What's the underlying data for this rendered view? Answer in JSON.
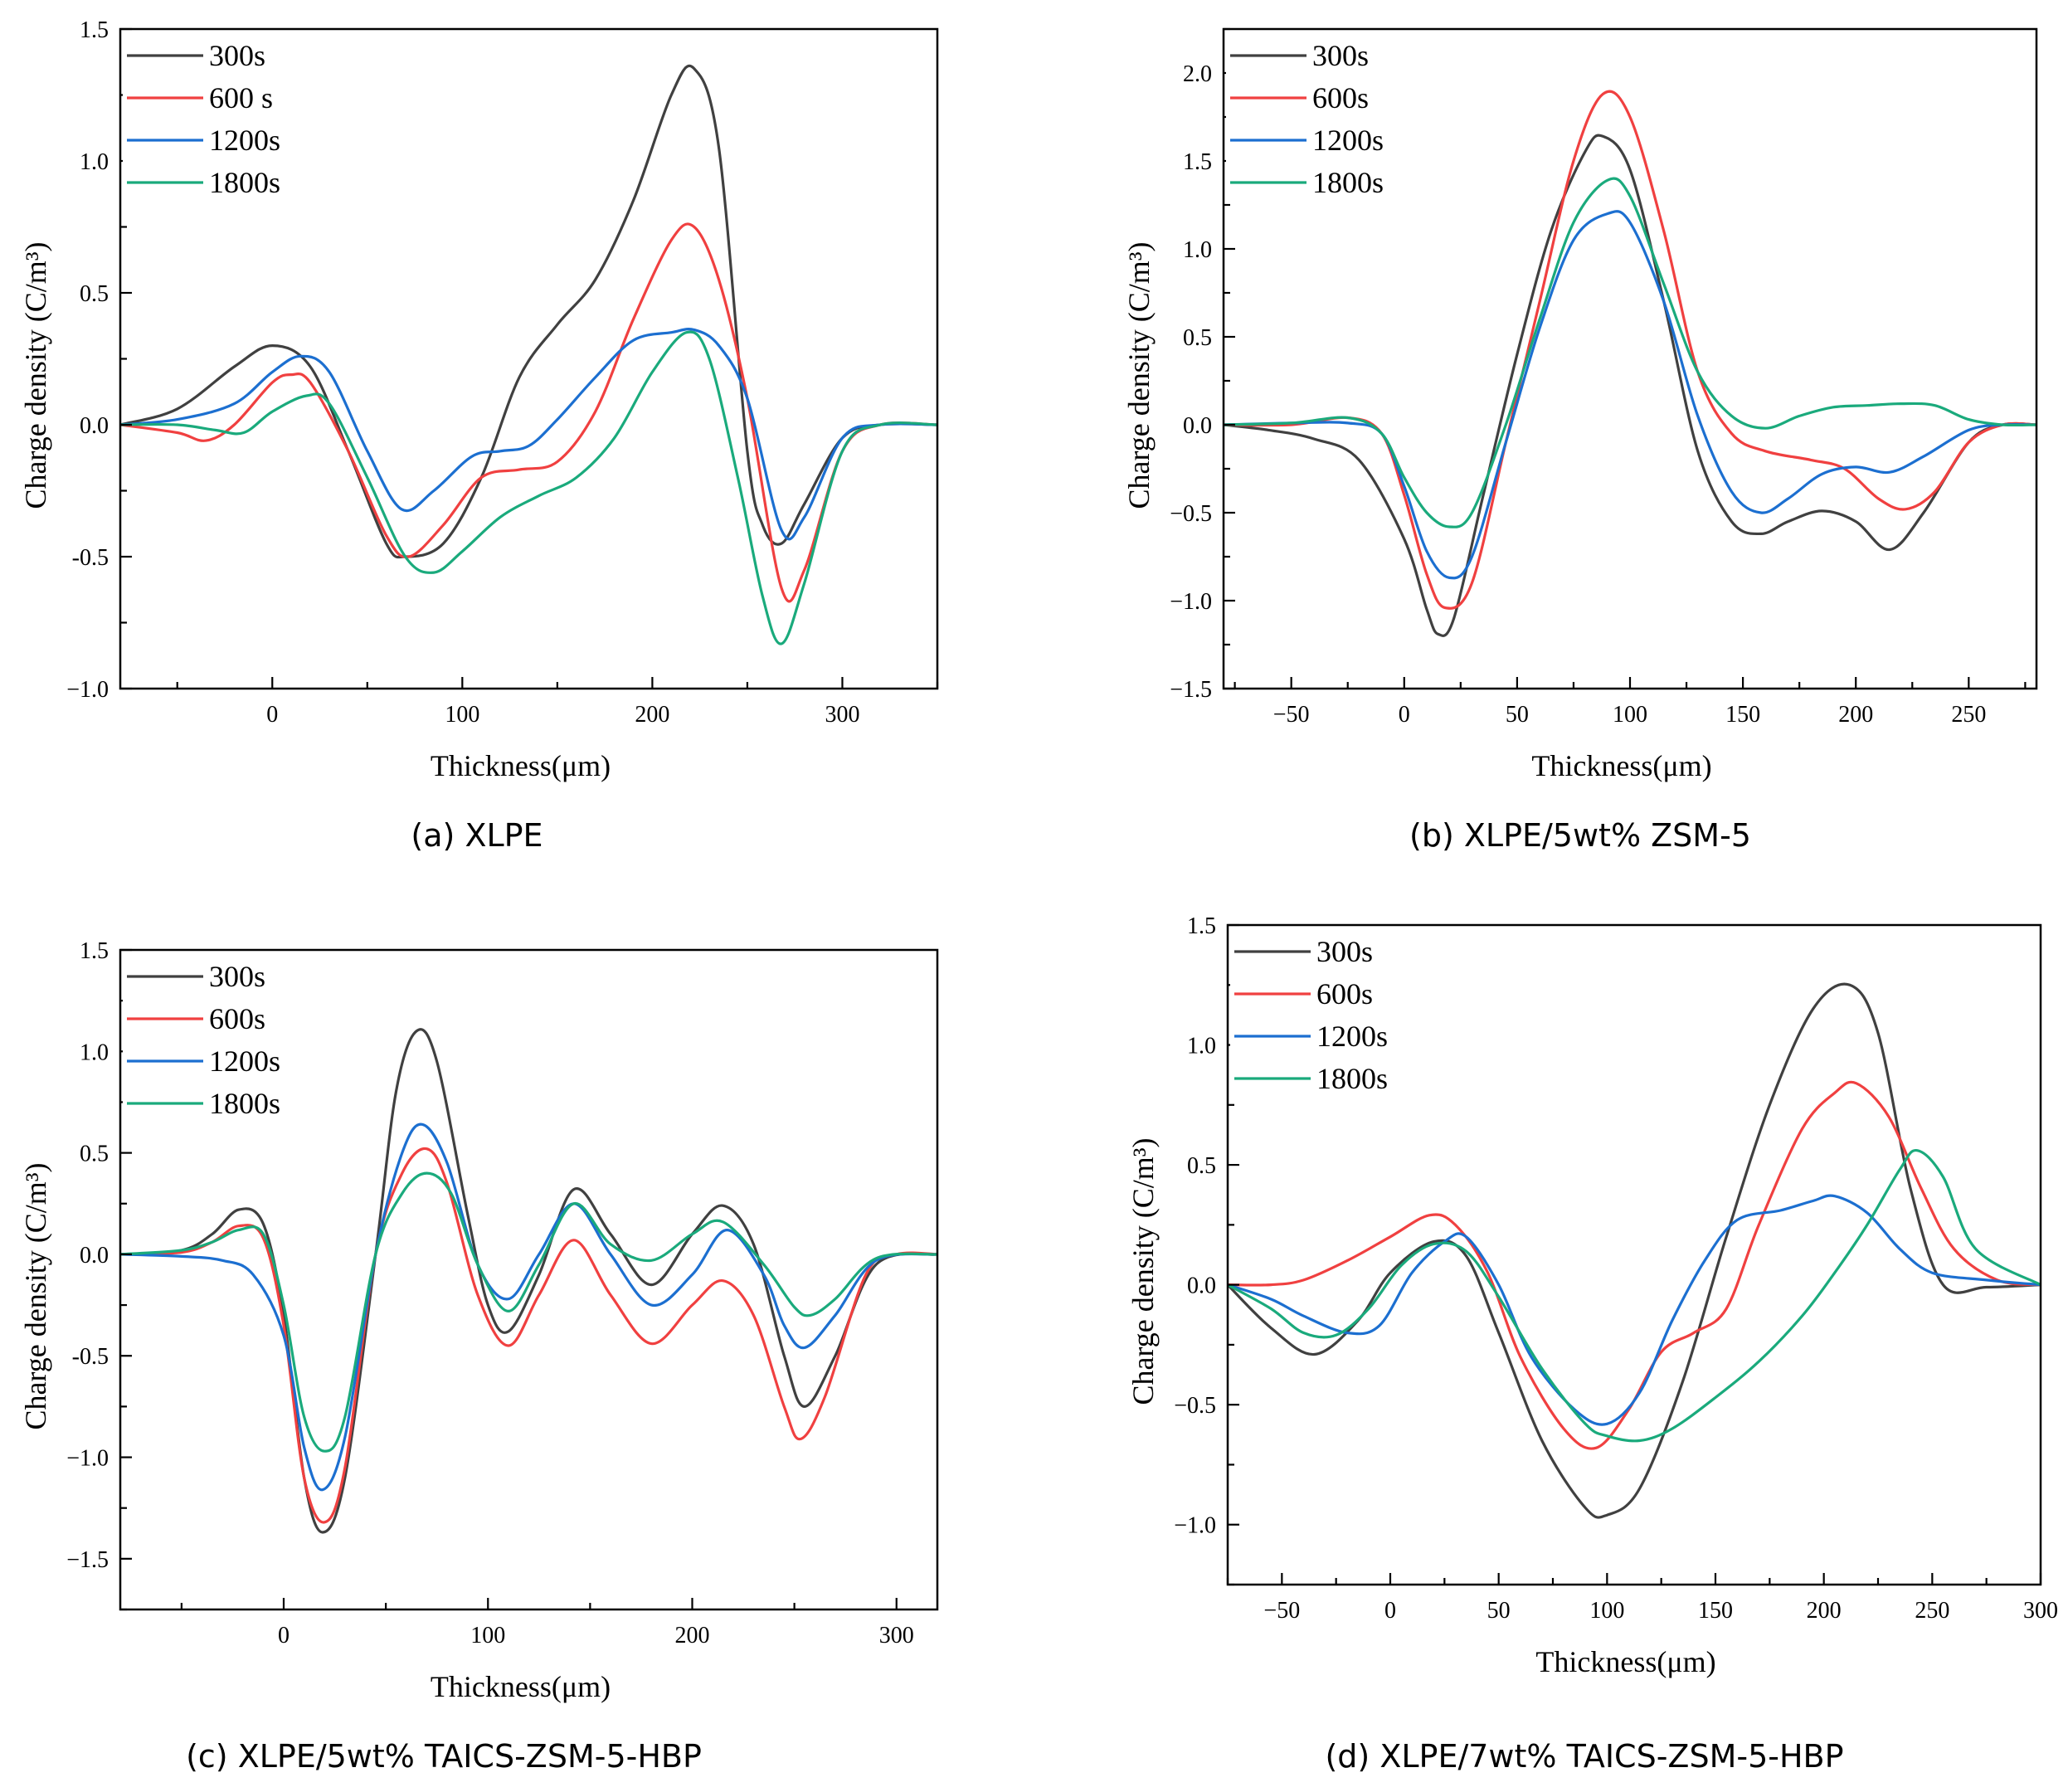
{
  "figure": {
    "series_colors": {
      "300s": "#404040",
      "600s": "#f04040",
      "1200s": "#1c6fd0",
      "1800s": "#1aaa7c"
    }
  },
  "chart_data": [
    {
      "type": "line",
      "caption": "(a) XLPE",
      "xlabel": "Thickness(μm)",
      "ylabel": "Charge density (C/m³)",
      "xlim": [
        -80,
        350
      ],
      "ylim": [
        -1.0,
        1.5
      ],
      "xticks": [
        0,
        100,
        200,
        300
      ],
      "xtick_labels": [
        "0",
        "100",
        "200",
        "300"
      ],
      "yticks": [
        -1.0,
        -0.5,
        0.0,
        0.5,
        1.0,
        1.5
      ],
      "ytick_labels": [
        "−1.0",
        "-0.5",
        "0.0",
        "0.5",
        "1.0",
        "1.5"
      ],
      "legend": [
        "300s",
        "600 s",
        "1200s",
        "1800s"
      ],
      "series": [
        {
          "name": "300s",
          "x": [
            -80,
            -50,
            -20,
            0,
            20,
            40,
            60,
            70,
            90,
            110,
            130,
            150,
            170,
            190,
            210,
            222,
            235,
            250,
            258,
            268,
            280,
            300,
            320,
            350
          ],
          "y": [
            0,
            0.06,
            0.22,
            0.3,
            0.22,
            -0.1,
            -0.45,
            -0.5,
            -0.45,
            -0.2,
            0.18,
            0.38,
            0.55,
            0.85,
            1.25,
            1.35,
            1.05,
            -0.1,
            -0.38,
            -0.45,
            -0.3,
            -0.05,
            0,
            0
          ]
        },
        {
          "name": "600 s",
          "x": [
            -80,
            -50,
            -35,
            -20,
            0,
            10,
            20,
            40,
            60,
            72,
            90,
            110,
            130,
            150,
            170,
            190,
            210,
            222,
            235,
            250,
            268,
            280,
            300,
            320,
            350
          ],
          "y": [
            0,
            -0.03,
            -0.06,
            0.0,
            0.16,
            0.19,
            0.16,
            -0.1,
            -0.42,
            -0.5,
            -0.38,
            -0.2,
            -0.17,
            -0.14,
            0.05,
            0.4,
            0.7,
            0.75,
            0.55,
            0.1,
            -0.62,
            -0.55,
            -0.1,
            0,
            0
          ]
        },
        {
          "name": "1200s",
          "x": [
            -80,
            -50,
            -20,
            0,
            15,
            30,
            50,
            68,
            85,
            105,
            120,
            135,
            150,
            170,
            190,
            210,
            222,
            235,
            250,
            268,
            280,
            300,
            320,
            350
          ],
          "y": [
            0,
            0.02,
            0.08,
            0.2,
            0.26,
            0.2,
            -0.1,
            -0.32,
            -0.25,
            -0.12,
            -0.1,
            -0.08,
            0.02,
            0.18,
            0.32,
            0.35,
            0.36,
            0.3,
            0.1,
            -0.4,
            -0.35,
            -0.05,
            0,
            0
          ]
        },
        {
          "name": "1800s",
          "x": [
            -80,
            -50,
            -30,
            -15,
            0,
            18,
            30,
            50,
            70,
            85,
            100,
            120,
            140,
            160,
            180,
            200,
            218,
            230,
            245,
            258,
            268,
            280,
            300,
            320,
            350
          ],
          "y": [
            0,
            0.0,
            -0.02,
            -0.03,
            0.05,
            0.11,
            0.08,
            -0.2,
            -0.5,
            -0.56,
            -0.48,
            -0.35,
            -0.27,
            -0.2,
            -0.05,
            0.2,
            0.35,
            0.25,
            -0.2,
            -0.65,
            -0.83,
            -0.6,
            -0.1,
            0,
            0
          ]
        }
      ]
    },
    {
      "type": "line",
      "caption": "(b) XLPE/5wt% ZSM-5",
      "xlabel": "Thickness(μm)",
      "ylabel": "Charge density (C/m³)",
      "xlim": [
        -80,
        280
      ],
      "ylim": [
        -1.5,
        2.25
      ],
      "xticks": [
        -50,
        0,
        50,
        100,
        150,
        200,
        250
      ],
      "xtick_labels": [
        "−50",
        "0",
        "50",
        "100",
        "150",
        "200",
        "250"
      ],
      "yticks": [
        -1.5,
        -1.0,
        -0.5,
        0.0,
        0.5,
        1.0,
        1.5,
        2.0
      ],
      "ytick_labels": [
        "−1.5",
        "−1.0",
        "−0.5",
        "0.0",
        "0.5",
        "1.0",
        "1.5",
        "2.0"
      ],
      "legend": [
        "300s",
        "600s",
        "1200s",
        "1800s"
      ],
      "series": [
        {
          "name": "300s",
          "x": [
            -80,
            -60,
            -40,
            -20,
            0,
            10,
            15,
            22,
            35,
            50,
            65,
            80,
            88,
            100,
            115,
            130,
            145,
            158,
            170,
            185,
            200,
            215,
            230,
            250,
            265,
            280
          ],
          "y": [
            0,
            -0.03,
            -0.08,
            -0.2,
            -0.65,
            -1.05,
            -1.19,
            -1.1,
            -0.4,
            0.4,
            1.1,
            1.55,
            1.64,
            1.45,
            0.7,
            -0.15,
            -0.55,
            -0.62,
            -0.55,
            -0.49,
            -0.55,
            -0.71,
            -0.5,
            -0.1,
            0,
            0
          ]
        },
        {
          "name": "600s",
          "x": [
            -80,
            -50,
            -25,
            -10,
            0,
            10,
            18,
            30,
            45,
            60,
            75,
            88,
            100,
            115,
            130,
            145,
            160,
            180,
            195,
            210,
            222,
            235,
            250,
            265,
            280
          ],
          "y": [
            0,
            0.0,
            0.04,
            -0.05,
            -0.4,
            -0.85,
            -1.04,
            -0.9,
            -0.1,
            0.7,
            1.5,
            1.88,
            1.75,
            1.1,
            0.3,
            -0.05,
            -0.15,
            -0.2,
            -0.25,
            -0.42,
            -0.48,
            -0.38,
            -0.1,
            0,
            0
          ]
        },
        {
          "name": "1200s",
          "x": [
            -80,
            -50,
            -25,
            -10,
            0,
            10,
            20,
            30,
            45,
            60,
            75,
            90,
            100,
            115,
            130,
            145,
            158,
            170,
            185,
            200,
            215,
            230,
            250,
            265,
            280
          ],
          "y": [
            0,
            0.01,
            0.01,
            -0.05,
            -0.35,
            -0.72,
            -0.87,
            -0.75,
            -0.1,
            0.55,
            1.05,
            1.2,
            1.15,
            0.7,
            0.05,
            -0.38,
            -0.5,
            -0.42,
            -0.28,
            -0.24,
            -0.27,
            -0.18,
            -0.03,
            0,
            0
          ]
        },
        {
          "name": "1800s",
          "x": [
            -80,
            -50,
            -25,
            -10,
            0,
            10,
            20,
            30,
            45,
            60,
            75,
            90,
            100,
            115,
            130,
            145,
            160,
            175,
            190,
            205,
            220,
            235,
            250,
            265,
            280
          ],
          "y": [
            0,
            0.01,
            0.04,
            -0.05,
            -0.3,
            -0.5,
            -0.58,
            -0.5,
            0.0,
            0.6,
            1.15,
            1.39,
            1.3,
            0.8,
            0.3,
            0.05,
            -0.02,
            0.05,
            0.1,
            0.11,
            0.12,
            0.11,
            0.03,
            0,
            0
          ]
        }
      ]
    },
    {
      "type": "line",
      "caption": "(c) XLPE/5wt% TAICS-ZSM-5-HBP",
      "xlabel": "Thickness(μm)",
      "ylabel": "Charge density (C/m³)",
      "xlim": [
        -80,
        320
      ],
      "ylim": [
        -1.75,
        1.5
      ],
      "xticks": [
        0,
        100,
        200,
        300
      ],
      "xtick_labels": [
        "0",
        "100",
        "200",
        "300"
      ],
      "yticks": [
        -1.5,
        -1.0,
        -0.5,
        0.0,
        0.5,
        1.0,
        1.5
      ],
      "ytick_labels": [
        "−1.5",
        "−1.0",
        "-0.5",
        "0.0",
        "0.5",
        "1.0",
        "1.5"
      ],
      "legend": [
        "300s",
        "600s",
        "1200s",
        "1800s"
      ],
      "series": [
        {
          "name": "300s",
          "x": [
            -80,
            -50,
            -35,
            -22,
            -10,
            0,
            10,
            19,
            30,
            45,
            55,
            65,
            75,
            90,
            100,
            110,
            125,
            142,
            160,
            180,
            200,
            215,
            230,
            245,
            255,
            270,
            290,
            320
          ],
          "y": [
            0,
            0.02,
            0.1,
            0.22,
            0.15,
            -0.3,
            -1.1,
            -1.37,
            -1.1,
            0.0,
            0.8,
            1.1,
            0.95,
            0.2,
            -0.25,
            -0.38,
            -0.1,
            0.32,
            0.1,
            -0.15,
            0.1,
            0.24,
            0.05,
            -0.5,
            -0.75,
            -0.5,
            -0.05,
            0
          ]
        },
        {
          "name": "600s",
          "x": [
            -80,
            -50,
            -35,
            -22,
            -10,
            0,
            10,
            20,
            30,
            45,
            58,
            70,
            80,
            95,
            110,
            125,
            142,
            160,
            180,
            200,
            215,
            230,
            245,
            253,
            265,
            285,
            300,
            320
          ],
          "y": [
            0,
            0.01,
            0.06,
            0.14,
            0.08,
            -0.35,
            -1.1,
            -1.32,
            -1.05,
            0.0,
            0.4,
            0.52,
            0.35,
            -0.2,
            -0.45,
            -0.2,
            0.07,
            -0.2,
            -0.44,
            -0.25,
            -0.13,
            -0.3,
            -0.75,
            -0.91,
            -0.7,
            -0.1,
            0,
            0
          ]
        },
        {
          "name": "1200s",
          "x": [
            -80,
            -50,
            -30,
            -15,
            0,
            10,
            19,
            30,
            45,
            58,
            68,
            80,
            95,
            110,
            125,
            142,
            160,
            180,
            200,
            217,
            235,
            245,
            255,
            270,
            290,
            320
          ],
          "y": [
            0,
            -0.01,
            -0.03,
            -0.1,
            -0.4,
            -0.95,
            -1.16,
            -0.9,
            0.0,
            0.5,
            0.64,
            0.45,
            -0.05,
            -0.22,
            0.0,
            0.25,
            0.0,
            -0.25,
            -0.1,
            0.12,
            -0.1,
            -0.35,
            -0.46,
            -0.3,
            -0.03,
            0
          ]
        },
        {
          "name": "1800s",
          "x": [
            -80,
            -50,
            -35,
            -22,
            -10,
            0,
            10,
            20,
            30,
            45,
            58,
            70,
            82,
            95,
            110,
            125,
            142,
            160,
            180,
            200,
            215,
            235,
            250,
            258,
            270,
            290,
            320
          ],
          "y": [
            0,
            0.02,
            0.06,
            0.12,
            0.1,
            -0.25,
            -0.8,
            -0.97,
            -0.8,
            0.0,
            0.3,
            0.4,
            0.3,
            -0.05,
            -0.28,
            -0.05,
            0.25,
            0.05,
            -0.03,
            0.1,
            0.16,
            -0.05,
            -0.26,
            -0.3,
            -0.22,
            -0.02,
            0
          ]
        }
      ]
    },
    {
      "type": "line",
      "caption": "(d) XLPE/7wt% TAICS-ZSM-5-HBP",
      "xlabel": "Thickness(μm)",
      "ylabel": "Charge density (C/m³)",
      "xlim": [
        -75,
        300
      ],
      "ylim": [
        -1.25,
        1.5
      ],
      "xticks": [
        -50,
        0,
        50,
        100,
        150,
        200,
        250,
        300
      ],
      "xtick_labels": [
        "−50",
        "0",
        "50",
        "100",
        "150",
        "200",
        "250",
        "300"
      ],
      "yticks": [
        -1.0,
        -0.5,
        0.0,
        0.5,
        1.0,
        1.5
      ],
      "ytick_labels": [
        "−1.0",
        "−0.5",
        "0.0",
        "0.5",
        "1.0",
        "1.5"
      ],
      "legend": [
        "300s",
        "600s",
        "1200s",
        "1800s"
      ],
      "series": [
        {
          "name": "300s",
          "x": [
            -75,
            -55,
            -35,
            -15,
            0,
            20,
            35,
            50,
            70,
            90,
            100,
            115,
            135,
            155,
            175,
            195,
            212,
            225,
            240,
            255,
            275,
            300
          ],
          "y": [
            0,
            -0.18,
            -0.29,
            -0.15,
            0.05,
            0.18,
            0.12,
            -0.2,
            -0.65,
            -0.93,
            -0.96,
            -0.85,
            -0.4,
            0.2,
            0.75,
            1.15,
            1.25,
            1.05,
            0.4,
            0.0,
            -0.01,
            0
          ]
        },
        {
          "name": "600s",
          "x": [
            -75,
            -55,
            -40,
            -20,
            0,
            18,
            30,
            45,
            60,
            80,
            95,
            110,
            125,
            140,
            155,
            170,
            190,
            205,
            215,
            230,
            245,
            260,
            280,
            300
          ],
          "y": [
            0,
            0.0,
            0.02,
            0.1,
            0.2,
            0.29,
            0.25,
            0.05,
            -0.3,
            -0.6,
            -0.68,
            -0.52,
            -0.28,
            -0.2,
            -0.1,
            0.25,
            0.65,
            0.8,
            0.84,
            0.7,
            0.4,
            0.15,
            0.02,
            0
          ]
        },
        {
          "name": "1200s",
          "x": [
            -75,
            -55,
            -40,
            -20,
            -5,
            10,
            25,
            35,
            50,
            65,
            85,
            100,
            115,
            130,
            145,
            160,
            180,
            195,
            205,
            220,
            235,
            250,
            275,
            300
          ],
          "y": [
            0,
            -0.06,
            -0.13,
            -0.2,
            -0.17,
            0.05,
            0.18,
            0.2,
            0.0,
            -0.3,
            -0.52,
            -0.58,
            -0.45,
            -0.15,
            0.1,
            0.27,
            0.31,
            0.35,
            0.37,
            0.3,
            0.15,
            0.05,
            0.02,
            0
          ]
        },
        {
          "name": "1800s",
          "x": [
            -75,
            -55,
            -40,
            -25,
            -10,
            5,
            20,
            35,
            50,
            70,
            90,
            100,
            115,
            130,
            150,
            170,
            190,
            205,
            220,
            235,
            243,
            255,
            270,
            300
          ],
          "y": [
            0,
            -0.1,
            -0.2,
            -0.21,
            -0.1,
            0.08,
            0.17,
            0.14,
            -0.05,
            -0.35,
            -0.58,
            -0.63,
            -0.65,
            -0.6,
            -0.47,
            -0.32,
            -0.13,
            0.05,
            0.25,
            0.48,
            0.56,
            0.45,
            0.15,
            0
          ]
        }
      ]
    }
  ]
}
